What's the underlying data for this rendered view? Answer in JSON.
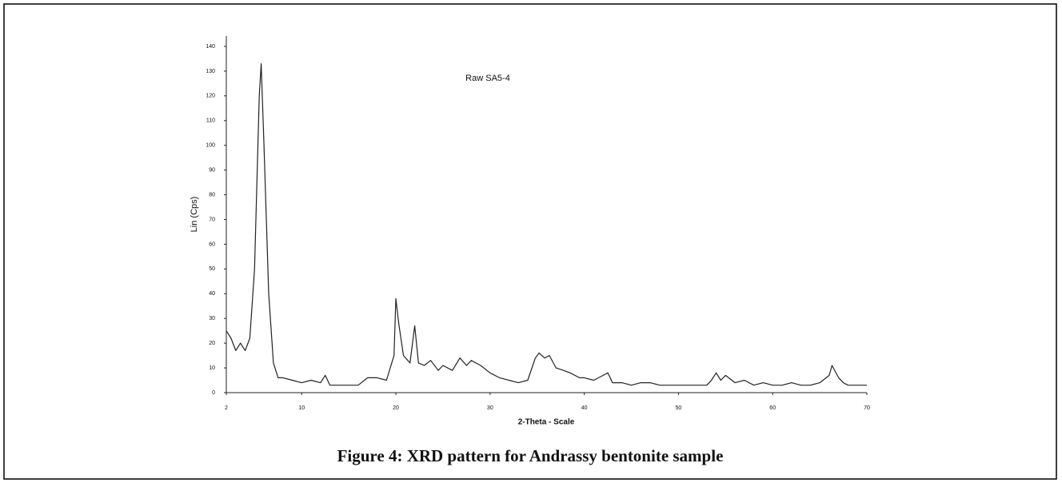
{
  "chart_data": {
    "type": "line",
    "title": "Raw SA5-4",
    "xlabel": "2-Theta - Scale",
    "ylabel": "Lin (Cps)",
    "x": [
      2,
      2.5,
      3,
      3.5,
      4,
      4.5,
      5,
      5.5,
      5.7,
      6,
      6.5,
      7,
      7.5,
      8,
      9,
      10,
      11,
      12,
      12.5,
      13,
      14,
      15,
      16,
      17,
      18,
      19,
      19.8,
      20,
      20.3,
      20.8,
      21.5,
      22,
      22.4,
      23,
      23.7,
      24.5,
      25,
      26,
      26.8,
      27.5,
      28,
      29,
      30,
      31,
      32,
      33,
      34,
      34.8,
      35.2,
      35.8,
      36.3,
      37,
      37.8,
      38.5,
      39.5,
      40,
      41,
      42,
      42.5,
      43,
      44,
      45,
      46,
      47,
      48,
      49,
      50,
      51,
      52,
      53,
      53.5,
      54,
      54.5,
      55,
      56,
      57,
      58,
      59,
      60,
      61,
      62,
      63,
      64,
      65,
      66,
      66.3,
      67,
      67.5,
      68,
      69,
      70
    ],
    "values": [
      25,
      22,
      17,
      20,
      17,
      22,
      50,
      120,
      133,
      100,
      40,
      12,
      6,
      6,
      5,
      4,
      5,
      4,
      7,
      3,
      3,
      3,
      3,
      6,
      6,
      5,
      15,
      38,
      28,
      15,
      12,
      27,
      12,
      11,
      13,
      9,
      11,
      9,
      14,
      11,
      13,
      11,
      8,
      6,
      5,
      4,
      5,
      14,
      16,
      14,
      15,
      10,
      9,
      8,
      6,
      6,
      5,
      7,
      8,
      4,
      4,
      3,
      4,
      4,
      3,
      3,
      3,
      3,
      3,
      3,
      5,
      8,
      5,
      7,
      4,
      5,
      3,
      4,
      3,
      3,
      4,
      3,
      3,
      4,
      7,
      11,
      6,
      4,
      3,
      3,
      3
    ],
    "color": "#222222",
    "xlim": [
      2,
      70
    ],
    "xticks": [
      2,
      10,
      20,
      30,
      40,
      50,
      60,
      70
    ],
    "ylim": [
      0,
      140
    ],
    "yticks": [
      0,
      10,
      20,
      30,
      40,
      50,
      60,
      70,
      80,
      90,
      100,
      110,
      120,
      130,
      140
    ],
    "grid": false
  },
  "caption": "Figure 4: XRD pattern for Andrassy bentonite sample"
}
